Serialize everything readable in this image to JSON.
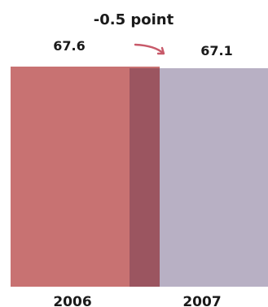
{
  "chart_data": {
    "type": "bar",
    "categories": [
      "2006",
      "2007"
    ],
    "values": [
      67.6,
      67.1
    ],
    "value_labels": [
      "67.6",
      "67.1"
    ],
    "annotation": "-0.5 point",
    "ylim": [
      0,
      67.6
    ],
    "grid": false,
    "colors": {
      "2006": "#c87272",
      "2007": "#b8b0c4",
      "overlap": "#9b5560",
      "arrow": "#c85a6a"
    }
  }
}
